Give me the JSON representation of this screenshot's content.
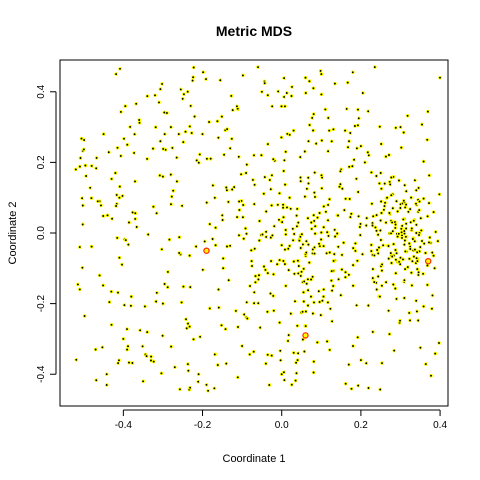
{
  "chart_data": {
    "type": "scatter",
    "title": "Metric MDS",
    "xlabel": "Coordinate 1",
    "ylabel": "Coordinate 2",
    "xlim": [
      -0.56,
      0.42
    ],
    "ylim": [
      -0.49,
      0.49
    ],
    "xticks": [
      -0.4,
      -0.2,
      0.0,
      0.2,
      0.4
    ],
    "xtick_labels": [
      "-0.4",
      "-0.2",
      "0.0",
      "0.2",
      "0.4"
    ],
    "yticks": [
      -0.4,
      -0.2,
      0.0,
      0.2,
      0.4
    ],
    "ytick_labels": [
      "-0.4",
      "-0.2",
      "0.0",
      "0.2",
      "0.4"
    ],
    "grid": false,
    "legend": "none",
    "colors": {
      "point_fill": "#000000",
      "point_edge": "#ffff00",
      "highlight_edge": "#ff2200"
    },
    "highlighted_points": [
      {
        "x": 0.37,
        "y": -0.08
      },
      {
        "x": -0.19,
        "y": -0.05
      },
      {
        "x": 0.06,
        "y": -0.29
      }
    ],
    "cloud_description": {
      "approx_point_count": 800,
      "x_range": [
        -0.52,
        0.4
      ],
      "y_range": [
        -0.45,
        0.47
      ],
      "densest_region": {
        "x": 0.3,
        "y": 0.0
      }
    },
    "points": [
      [
        -0.52,
        0.18
      ],
      [
        -0.51,
        -0.04
      ],
      [
        -0.48,
        0.19
      ],
      [
        -0.47,
        -0.33
      ],
      [
        -0.46,
        0.09
      ],
      [
        -0.46,
        -0.12
      ],
      [
        -0.45,
        0.28
      ],
      [
        -0.44,
        0.05
      ],
      [
        -0.43,
        -0.26
      ],
      [
        -0.42,
        0.17
      ],
      [
        -0.41,
        -0.07
      ],
      [
        -0.41,
        0.1
      ],
      [
        -0.4,
        -0.3
      ],
      [
        -0.39,
        0.25
      ],
      [
        -0.38,
        -0.18
      ],
      [
        -0.37,
        0.04
      ],
      [
        -0.36,
        0.32
      ],
      [
        -0.35,
        -0.42
      ],
      [
        -0.34,
        0.21
      ],
      [
        -0.33,
        -0.35
      ],
      [
        -0.32,
        0.39
      ],
      [
        -0.31,
        0.37
      ],
      [
        -0.3,
        -0.2
      ],
      [
        -0.29,
        0.34
      ],
      [
        -0.28,
        0.3
      ],
      [
        -0.27,
        -0.38
      ],
      [
        -0.26,
        0.28
      ],
      [
        -0.25,
        0.38
      ],
      [
        -0.24,
        -0.27
      ],
      [
        -0.23,
        0.36
      ],
      [
        -0.22,
        0.33
      ],
      [
        -0.21,
        -0.4
      ],
      [
        -0.2,
        0.28
      ],
      [
        -0.19,
        -0.43
      ],
      [
        -0.18,
        0.21
      ],
      [
        -0.17,
        -0.44
      ],
      [
        -0.16,
        0.27
      ],
      [
        -0.15,
        0.05
      ],
      [
        -0.14,
        -0.37
      ],
      [
        -0.13,
        0.24
      ],
      [
        -0.12,
        0.13
      ],
      [
        -0.11,
        0.35
      ],
      [
        -0.1,
        -0.32
      ],
      [
        -0.09,
        0.17
      ],
      [
        -0.08,
        -0.15
      ],
      [
        -0.07,
        0.22
      ],
      [
        -0.06,
        0.47
      ],
      [
        -0.05,
        0.4
      ],
      [
        -0.04,
        -0.37
      ],
      [
        -0.03,
        0.15
      ],
      [
        -0.02,
        -0.22
      ],
      [
        -0.01,
        0.08
      ],
      [
        0.0,
        -0.4
      ],
      [
        0.01,
        0.23
      ],
      [
        0.02,
        0.1
      ],
      [
        0.03,
        0.29
      ],
      [
        0.04,
        -0.36
      ],
      [
        0.05,
        -0.11
      ],
      [
        0.06,
        0.44
      ],
      [
        0.07,
        0.43
      ],
      [
        0.08,
        0.41
      ],
      [
        0.09,
        -0.31
      ],
      [
        0.1,
        0.45
      ],
      [
        0.11,
        0.35
      ],
      [
        0.12,
        0.29
      ],
      [
        0.13,
        -0.15
      ],
      [
        0.14,
        0.05
      ],
      [
        0.15,
        0.18
      ],
      [
        0.16,
        0.29
      ],
      [
        0.17,
        0.26
      ],
      [
        0.18,
        -0.32
      ],
      [
        0.19,
        0.24
      ],
      [
        0.2,
        -0.36
      ],
      [
        0.21,
        0.2
      ],
      [
        0.22,
        0.22
      ],
      [
        0.23,
        -0.28
      ],
      [
        0.24,
        -0.16
      ],
      [
        0.25,
        0.17
      ],
      [
        0.26,
        0.14
      ],
      [
        0.27,
        -0.22
      ],
      [
        0.28,
        0.11
      ],
      [
        0.29,
        0.09
      ],
      [
        0.3,
        -0.07
      ],
      [
        0.31,
        0.04
      ],
      [
        0.32,
        0.06
      ],
      [
        0.33,
        -0.08
      ],
      [
        0.34,
        0.0
      ],
      [
        0.35,
        -0.04
      ],
      [
        0.36,
        -0.03
      ]
    ]
  }
}
